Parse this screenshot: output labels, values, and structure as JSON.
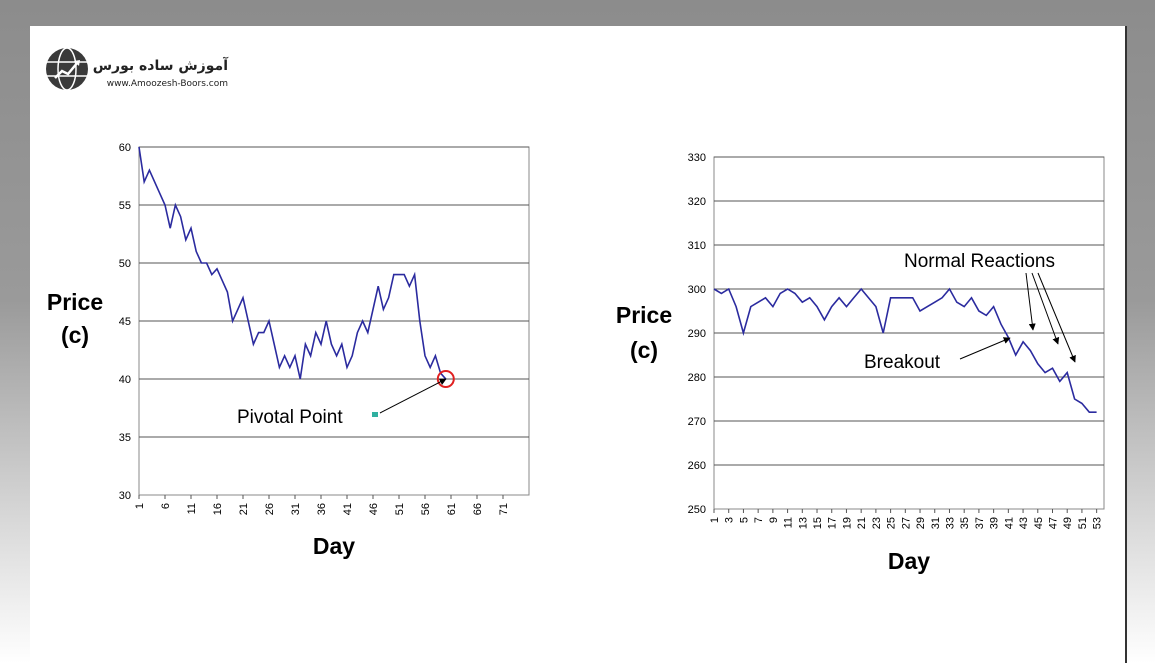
{
  "logo": {
    "title": "آموزش ساده بورس",
    "url": "www.Amoozesh-Boors.com",
    "icon": "globe-chart-icon"
  },
  "chart_data": [
    {
      "type": "line",
      "xlabel": "Day",
      "ylabel_line1": "Price",
      "ylabel_line2": "(c)",
      "ylim": [
        30,
        60
      ],
      "yticks": [
        30,
        35,
        40,
        45,
        50,
        55,
        60
      ],
      "xlim": [
        1,
        76
      ],
      "xticks": [
        "1",
        "6",
        "11",
        "16",
        "21",
        "26",
        "31",
        "36",
        "41",
        "46",
        "51",
        "56",
        "61",
        "66",
        "71"
      ],
      "grid": true,
      "line_color": "#2b2b9f",
      "series": [
        {
          "x": [
            1,
            2,
            3,
            4,
            5,
            6,
            7,
            8,
            9,
            10,
            11,
            12,
            13,
            14,
            15,
            16,
            17,
            18,
            19,
            20,
            21,
            22,
            23,
            24,
            25,
            26,
            27,
            28,
            29,
            30,
            31,
            32,
            33,
            34,
            35,
            36,
            37,
            38,
            39,
            40,
            41,
            42,
            43,
            44,
            45,
            46,
            47,
            48,
            49,
            50,
            51,
            52,
            53,
            54,
            55,
            56,
            57,
            58,
            59,
            60
          ],
          "values": [
            60,
            57,
            58,
            57,
            56,
            55,
            53,
            55,
            54,
            52,
            53,
            51,
            50,
            50,
            49,
            49.5,
            48.5,
            47.5,
            45,
            46,
            47,
            45,
            43,
            44,
            44,
            45,
            43,
            41,
            42,
            41,
            42,
            40,
            43,
            42,
            44,
            43,
            45,
            43,
            42,
            43,
            41,
            42,
            44,
            45,
            44,
            46,
            48,
            46,
            47,
            49,
            49,
            49,
            48,
            49,
            45,
            42,
            41,
            42,
            40.5,
            40
          ]
        }
      ],
      "annotations": [
        {
          "text": "Pivotal Point",
          "target_x": 60,
          "target_y": 40,
          "marker": "red-circle"
        }
      ]
    },
    {
      "type": "line",
      "xlabel": "Day",
      "ylabel_line1": "Price",
      "ylabel_line2": "(c)",
      "ylim": [
        250,
        330
      ],
      "yticks": [
        250,
        260,
        270,
        280,
        290,
        300,
        310,
        320,
        330
      ],
      "xlim": [
        1,
        54
      ],
      "xticks": [
        "1",
        "3",
        "5",
        "7",
        "9",
        "11",
        "13",
        "15",
        "17",
        "19",
        "21",
        "23",
        "25",
        "27",
        "29",
        "31",
        "33",
        "35",
        "37",
        "39",
        "41",
        "43",
        "45",
        "47",
        "49",
        "51",
        "53"
      ],
      "grid": true,
      "line_color": "#2b2b9f",
      "series": [
        {
          "x": [
            1,
            2,
            3,
            4,
            5,
            6,
            7,
            8,
            9,
            10,
            11,
            12,
            13,
            14,
            15,
            16,
            17,
            18,
            19,
            20,
            21,
            22,
            23,
            24,
            25,
            26,
            27,
            28,
            29,
            30,
            31,
            32,
            33,
            34,
            35,
            36,
            37,
            38,
            39,
            40,
            41,
            42,
            43,
            44,
            45,
            46,
            47,
            48,
            49,
            50,
            51,
            52,
            53
          ],
          "values": [
            300,
            299,
            300,
            296,
            290,
            296,
            297,
            298,
            296,
            299,
            300,
            299,
            297,
            298,
            296,
            293,
            296,
            298,
            296,
            298,
            300,
            298,
            296,
            290,
            298,
            298,
            298,
            298,
            295,
            296,
            297,
            298,
            300,
            297,
            296,
            298,
            295,
            294,
            296,
            292,
            289,
            285,
            288,
            286,
            283,
            281,
            282,
            279,
            281,
            275,
            274,
            272,
            272
          ]
        }
      ],
      "annotations": [
        {
          "text": "Normal Reactions",
          "targets": [
            [
              43,
              287
            ],
            [
              46,
              281
            ],
            [
              48,
              281
            ]
          ]
        },
        {
          "text": "Breakout",
          "target_x": 40,
          "target_y": 292
        }
      ]
    }
  ]
}
